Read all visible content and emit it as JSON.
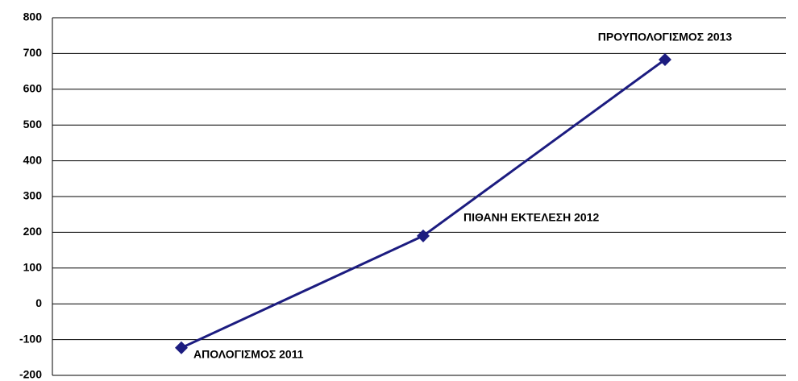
{
  "chart_data": {
    "type": "line",
    "categories": [
      "ΑΠΟΛΟΓΙΣΜΟΣ 2011",
      "ΠΙΘΑΝΗ ΕΚΤΕΛΕΣΗ 2012",
      "ΠΡΟΥΠΟΛΟΓΙΣΜΟΣ 2013"
    ],
    "values": [
      -123,
      190,
      683
    ],
    "color": "#1c1c80",
    "negative_tick_color": "#ff0000",
    "ylim": [
      -200,
      800
    ],
    "yticks": [
      -200,
      -100,
      0,
      100,
      200,
      300,
      400,
      500,
      600,
      700,
      800
    ],
    "grid": true
  }
}
